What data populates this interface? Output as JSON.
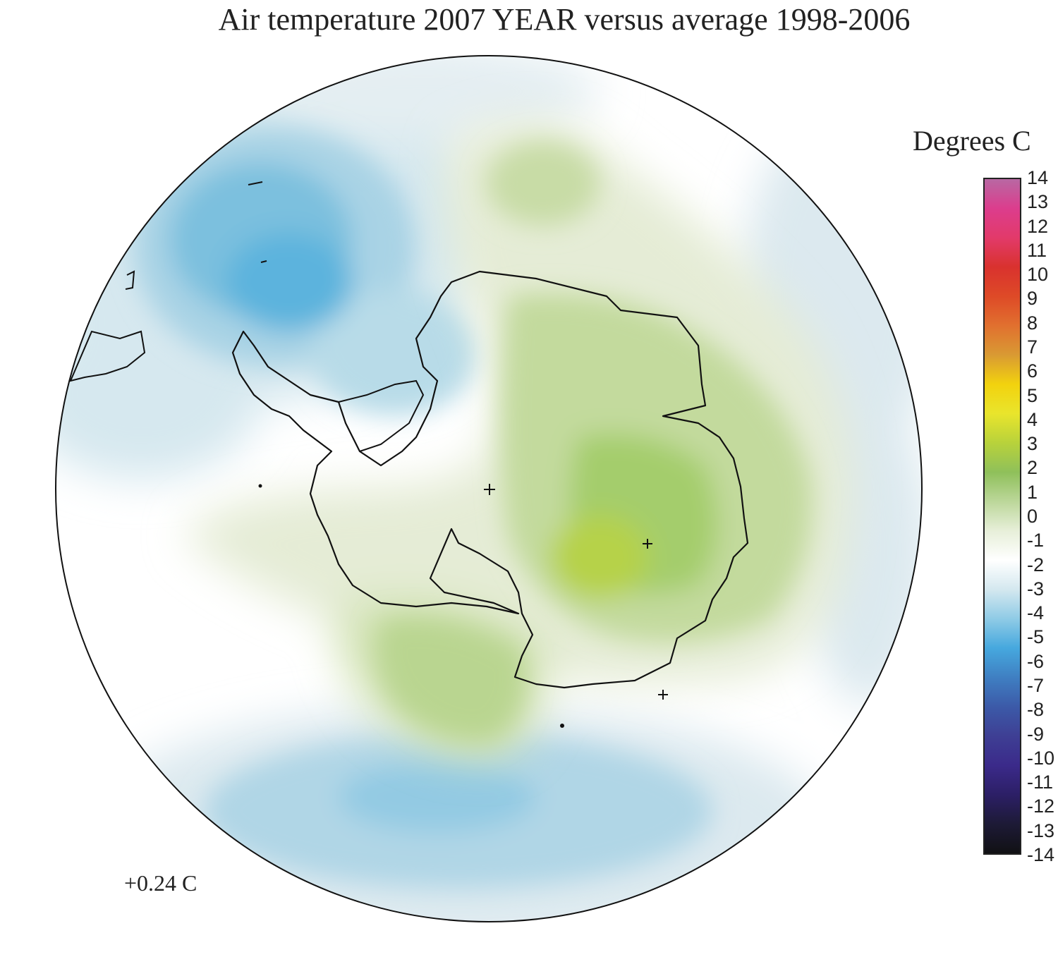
{
  "title": "Air temperature 2007 YEAR versus average 1998-2006",
  "colorbar": {
    "label": "Degrees C",
    "ticks": [
      "14",
      "13",
      "12",
      "11",
      "10",
      "9",
      "8",
      "7",
      "6",
      "5",
      "4",
      "3",
      "2",
      "1",
      "0",
      "-1",
      "-2",
      "-3",
      "-4",
      "-5",
      "-6",
      "-7",
      "-8",
      "-9",
      "-10",
      "-11",
      "-12",
      "-13",
      "-14"
    ],
    "range": [
      -14,
      14
    ],
    "colors": [
      "#111114",
      "#1d1a36",
      "#2c1f66",
      "#3b2a8a",
      "#3e3f94",
      "#3c5aa8",
      "#3f7fc2",
      "#46a8de",
      "#8fcbe6",
      "#d4e8ef",
      "#ffffff",
      "#e7efd9",
      "#bcd79a",
      "#8fc05a",
      "#b8d23b",
      "#e9e52c",
      "#f2d20e",
      "#d99a33",
      "#e1702f",
      "#de4a27",
      "#d9322e",
      "#e23a6a",
      "#dc3d8d",
      "#b868a3"
    ]
  },
  "global_mean_label": "+0.24 C",
  "colors": {
    "coastline": "#111111",
    "warm_light": "#e4ecd4",
    "warm_mid": "#c9dea5",
    "warm_strong": "#a3cd6d",
    "cool_light": "#dae9ef",
    "cool_mid": "#aed6e6",
    "cool_strong": "#6bb8dc"
  }
}
